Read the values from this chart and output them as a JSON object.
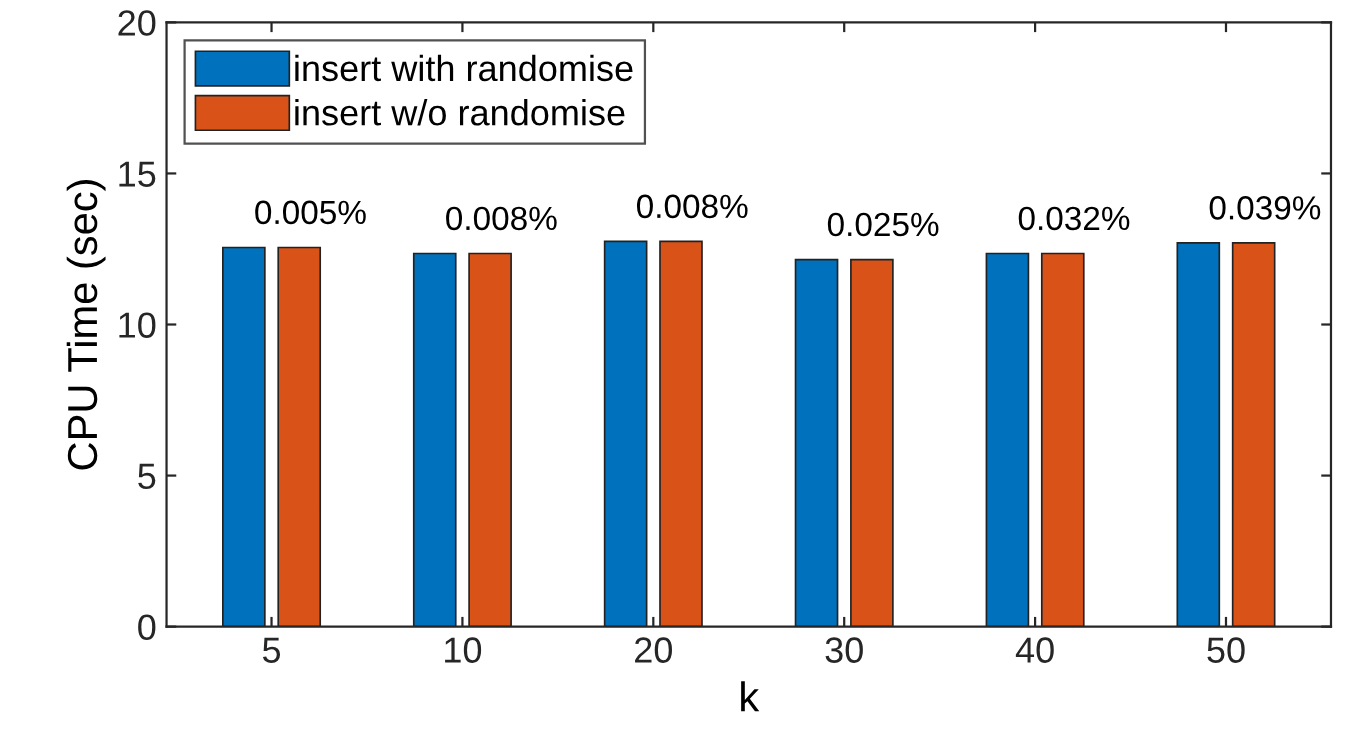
{
  "chart_data": {
    "type": "bar",
    "xlabel": "k",
    "ylabel": "CPU Time (sec)",
    "categories": [
      "5",
      "10",
      "20",
      "30",
      "40",
      "50"
    ],
    "series": [
      {
        "name": "insert with randomise",
        "color": "#0072bd",
        "values": [
          12.55,
          12.35,
          12.75,
          12.15,
          12.35,
          12.7
        ]
      },
      {
        "name": "insert w/o randomise",
        "color": "#d95319",
        "values": [
          12.55,
          12.35,
          12.75,
          12.15,
          12.35,
          12.7
        ]
      }
    ],
    "annotations": [
      {
        "text": "0.005%",
        "x": "5",
        "y": 12.55
      },
      {
        "text": "0.008%",
        "x": "10",
        "y": 12.35
      },
      {
        "text": "0.008%",
        "x": "20",
        "y": 12.75
      },
      {
        "text": "0.025%",
        "x": "30",
        "y": 12.15
      },
      {
        "text": "0.032%",
        "x": "40",
        "y": 12.35
      },
      {
        "text": "0.039%",
        "x": "50",
        "y": 12.7
      }
    ],
    "ylim": [
      0,
      20
    ],
    "yticks": [
      0,
      5,
      10,
      15,
      20
    ],
    "grid": false,
    "legend": "top left"
  }
}
